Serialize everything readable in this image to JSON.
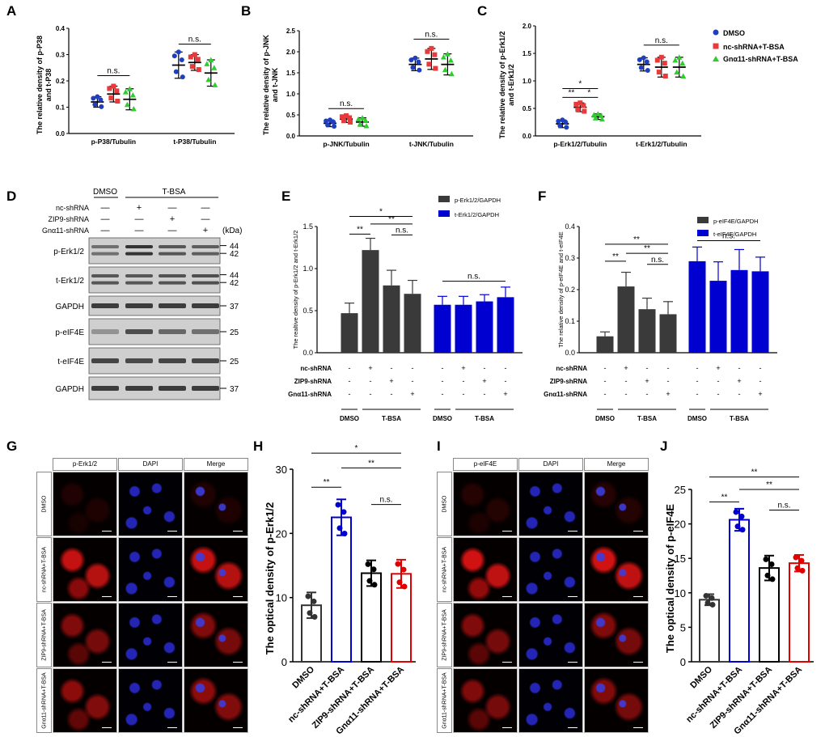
{
  "panels": {
    "A": {
      "letter": "A",
      "ylabel": "The relative density of p-P38 and t-P38",
      "ylabel_l1": "The relative density of p-P38",
      "ylabel_l2": "and t-P38",
      "yticks": [
        "0.0",
        "0.1",
        "0.2",
        "0.3",
        "0.4"
      ],
      "xcats": [
        "p-P38/Tubulin",
        "t-P38/Tubulin"
      ],
      "sig": [
        "n.s.",
        "n.s."
      ]
    },
    "B": {
      "letter": "B",
      "ylabel_l1": "The relative density of p-JNK",
      "ylabel_l2": "and t-JNK",
      "yticks": [
        "0.0",
        "0.5",
        "1.0",
        "1.5",
        "2.0",
        "2.5"
      ],
      "xcats": [
        "p-JNK/Tubulin",
        "t-JNK/Tubulin"
      ],
      "sig": [
        "n.s.",
        "n.s."
      ]
    },
    "C": {
      "letter": "C",
      "ylabel_l1": "The relative density of p-Erk1/2",
      "ylabel_l2": "and t-Erk1/2",
      "yticks": [
        "0.0",
        "0.5",
        "1.0",
        "1.5",
        "2.0"
      ],
      "xcats": [
        "p-Erk1/2/Tubulin",
        "t-Erk1/2/Tubulin"
      ],
      "sig": [
        "*",
        "**",
        "*",
        "n.s."
      ],
      "legend": [
        "DMSO",
        "nc-shRNA+T-BSA",
        "Gnα11-shRNA+T-BSA"
      ]
    },
    "D": {
      "letter": "D",
      "groups": [
        "DMSO",
        "T-BSA"
      ],
      "rows": [
        "nc-shRNA",
        "ZIP9-shRNA",
        "Gnα11-shRNA"
      ],
      "signs": [
        [
          "—",
          "+",
          "—",
          "—"
        ],
        [
          "—",
          "—",
          "+",
          "—"
        ],
        [
          "—",
          "—",
          "—",
          "+"
        ]
      ],
      "kda": "(kDa)",
      "blots": [
        {
          "name": "p-Erk1/2",
          "kda": [
            "44",
            "42"
          ]
        },
        {
          "name": "t-Erk1/2",
          "kda": [
            "44",
            "42"
          ]
        },
        {
          "name": "GAPDH",
          "kda": [
            "37"
          ]
        },
        {
          "name": "p-eIF4E",
          "kda": [
            "25"
          ]
        },
        {
          "name": "t-eIF4E",
          "kda": [
            "25"
          ]
        },
        {
          "name": "GAPDH",
          "kda": [
            "37"
          ]
        }
      ]
    },
    "E": {
      "letter": "E",
      "ylabel": "The realtive density of p-Erk1/2 and t-Erk1/2",
      "yticks": [
        "0.0",
        "0.5",
        "1.0",
        "1.5"
      ],
      "legend": [
        "p-Erk1/2/GAPDH",
        "t-Erk1/2/GAPDH"
      ],
      "sig": [
        "*",
        "**",
        "**",
        "n.s.",
        "n.s."
      ]
    },
    "F": {
      "letter": "F",
      "ylabel": "The relative density of p-eIF4E and t-eIF4E",
      "yticks": [
        "0.0",
        "0.1",
        "0.2",
        "0.3",
        "0.4"
      ],
      "legend": [
        "p-eIF4E/GAPDH",
        "t-eIF4E/GAPDH"
      ],
      "sig": [
        "**",
        "**",
        "**",
        "n.s.",
        "n.s."
      ]
    },
    "EF_table": {
      "rows": [
        "nc-shRNA",
        "ZIP9-shRNA",
        "Gnα11-shRNA"
      ],
      "signs": [
        [
          "-",
          "+",
          "-",
          "-"
        ],
        [
          "-",
          "-",
          "+",
          "-"
        ],
        [
          "-",
          "-",
          "-",
          "+"
        ]
      ],
      "groups": [
        "DMSO",
        "T-BSA",
        "DMSO",
        "T-BSA"
      ]
    },
    "G": {
      "letter": "G",
      "cols": [
        "p-Erk1/2",
        "DAPI",
        "Merge"
      ],
      "rows": [
        "DMSO",
        "nc-shRNA+T-BSA",
        "ZIP9-shRNA+T-BSA",
        "Gnα11-shRNA+T-BSA"
      ]
    },
    "H": {
      "letter": "H",
      "ylabel": "The optical density of p-Erk1/2",
      "yticks": [
        "0",
        "10",
        "20",
        "30"
      ],
      "xcats": [
        "DMSO",
        "nc-shRNA+T-BSA",
        "ZIP9-shRNA+T-BSA",
        "Gnα11-shRNA+T-BSA"
      ],
      "sig": [
        "*",
        "**",
        "**",
        "n.s."
      ]
    },
    "I": {
      "letter": "I",
      "cols": [
        "p-eIF4E",
        "DAPI",
        "Merge"
      ],
      "rows": [
        "DMSO",
        "nc-shRNA+T-BSA",
        "ZIP9-shRNA+T-BSA",
        "Gnα11-shRNA+T-BSA"
      ]
    },
    "J": {
      "letter": "J",
      "ylabel": "The optical density of p-eIF4E",
      "yticks": [
        "0",
        "5",
        "10",
        "15",
        "20",
        "25"
      ],
      "xcats": [
        "DMSO",
        "nc-shRNA+T-BSA",
        "ZIP9-shRNA+T-BSA",
        "Gnα11-shRNA+T-BSA"
      ],
      "sig": [
        "**",
        "**",
        "**",
        "n.s."
      ]
    }
  },
  "colors": {
    "dmso": "#1f3fbf",
    "nc": "#e83a3a",
    "gna": "#2ecc2e",
    "darkbar": "#3a3a3a",
    "bluebar": "#0000d0",
    "red": "#e00000"
  },
  "chart_data": [
    {
      "type": "scatter",
      "panel": "A",
      "categories": [
        "p-P38/Tubulin",
        "t-P38/Tubulin"
      ],
      "ylim": [
        0,
        0.4
      ],
      "series": [
        {
          "name": "DMSO",
          "means": [
            0.12,
            0.26
          ],
          "sd": [
            0.02,
            0.05
          ]
        },
        {
          "name": "nc-shRNA+T-BSA",
          "means": [
            0.15,
            0.27
          ],
          "sd": [
            0.03,
            0.03
          ]
        },
        {
          "name": "Gnα11-shRNA+T-BSA",
          "means": [
            0.13,
            0.23
          ],
          "sd": [
            0.04,
            0.05
          ]
        }
      ]
    },
    {
      "type": "scatter",
      "panel": "B",
      "categories": [
        "p-JNK/Tubulin",
        "t-JNK/Tubulin"
      ],
      "ylim": [
        0,
        2.5
      ],
      "series": [
        {
          "name": "DMSO",
          "means": [
            0.3,
            1.7
          ],
          "sd": [
            0.08,
            0.15
          ]
        },
        {
          "name": "nc-shRNA+T-BSA",
          "means": [
            0.4,
            1.83
          ],
          "sd": [
            0.08,
            0.25
          ]
        },
        {
          "name": "Gnα11-shRNA+T-BSA",
          "means": [
            0.33,
            1.7
          ],
          "sd": [
            0.1,
            0.25
          ]
        }
      ]
    },
    {
      "type": "scatter",
      "panel": "C",
      "categories": [
        "p-Erk1/2/Tubulin",
        "t-Erk1/2/Tubulin"
      ],
      "ylim": [
        0,
        2.0
      ],
      "series": [
        {
          "name": "DMSO",
          "means": [
            0.22,
            1.3
          ],
          "sd": [
            0.07,
            0.12
          ]
        },
        {
          "name": "nc-shRNA+T-BSA",
          "means": [
            0.52,
            1.25
          ],
          "sd": [
            0.08,
            0.18
          ]
        },
        {
          "name": "Gnα11-shRNA+T-BSA",
          "means": [
            0.35,
            1.25
          ],
          "sd": [
            0.05,
            0.18
          ]
        }
      ]
    },
    {
      "type": "bar",
      "panel": "E",
      "ylim": [
        0,
        1.5
      ],
      "series": [
        {
          "name": "p-Erk1/2/GAPDH",
          "values": [
            0.47,
            1.22,
            0.8,
            0.7
          ],
          "sd": [
            0.12,
            0.14,
            0.18,
            0.16
          ]
        },
        {
          "name": "t-Erk1/2/GAPDH",
          "values": [
            0.57,
            0.57,
            0.61,
            0.66
          ],
          "sd": [
            0.1,
            0.1,
            0.08,
            0.12
          ]
        }
      ]
    },
    {
      "type": "bar",
      "panel": "F",
      "ylim": [
        0,
        0.4
      ],
      "series": [
        {
          "name": "p-eIF4E/GAPDH",
          "values": [
            0.052,
            0.21,
            0.138,
            0.122
          ],
          "sd": [
            0.014,
            0.045,
            0.035,
            0.04
          ]
        },
        {
          "name": "t-eIF4E/GAPDH",
          "values": [
            0.29,
            0.228,
            0.262,
            0.258
          ],
          "sd": [
            0.045,
            0.06,
            0.065,
            0.045
          ]
        }
      ]
    },
    {
      "type": "bar",
      "panel": "H",
      "categories": [
        "DMSO",
        "nc-shRNA+T-BSA",
        "ZIP9-shRNA+T-BSA",
        "Gnα11-shRNA+T-BSA"
      ],
      "ylim": [
        0,
        30
      ],
      "values": [
        8.8,
        22.5,
        13.8,
        13.7
      ],
      "sd": [
        2.0,
        2.8,
        2.0,
        2.2
      ]
    },
    {
      "type": "bar",
      "panel": "J",
      "categories": [
        "DMSO",
        "nc-shRNA+T-BSA",
        "ZIP9-shRNA+T-BSA",
        "Gnα11-shRNA+T-BSA"
      ],
      "ylim": [
        0,
        25
      ],
      "values": [
        9.0,
        20.6,
        13.6,
        14.3
      ],
      "sd": [
        0.8,
        1.6,
        1.8,
        1.2
      ]
    }
  ]
}
